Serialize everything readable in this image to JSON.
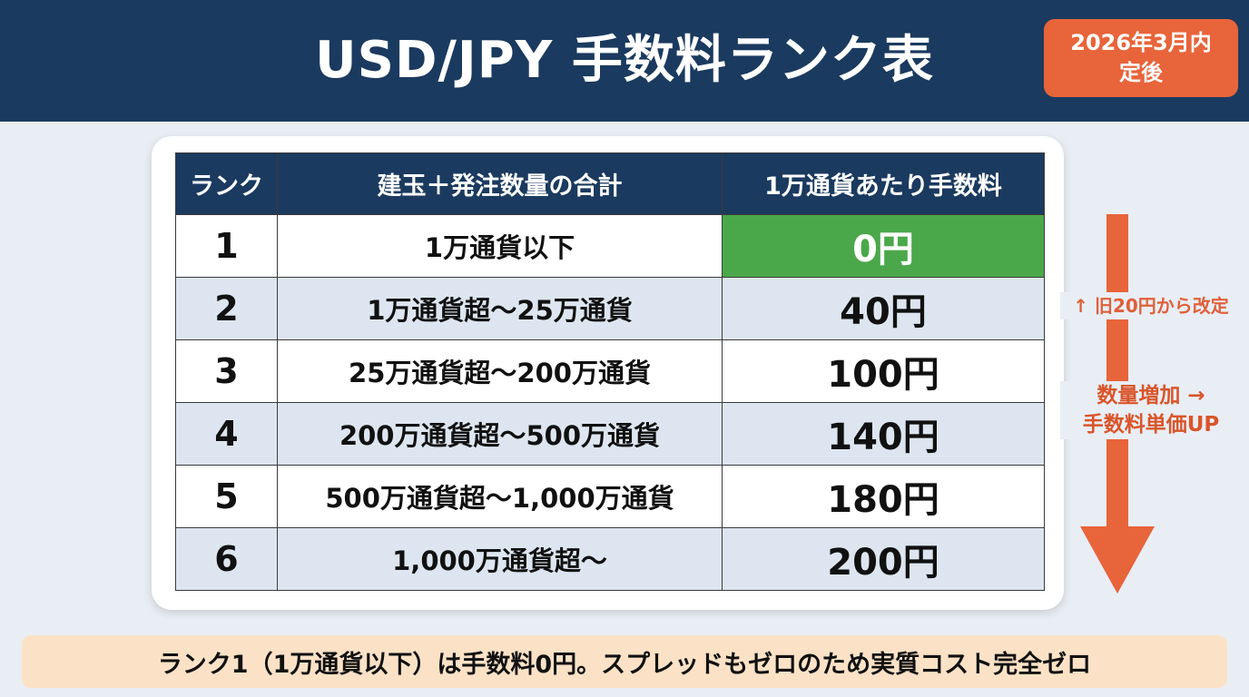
{
  "header": {
    "title": "USD/JPY 手数料ランク表",
    "badge_line1": "2026年3月内",
    "badge_line2": "定後"
  },
  "table": {
    "columns": [
      "ランク",
      "建玉＋発注数量の合計",
      "1万通貨あたり手数料"
    ],
    "rows": [
      {
        "rank": "1",
        "quantity": "1万通貨以下",
        "fee": "0円"
      },
      {
        "rank": "2",
        "quantity": "1万通貨超〜25万通貨",
        "fee": "40円"
      },
      {
        "rank": "3",
        "quantity": "25万通貨超〜200万通貨",
        "fee": "100円"
      },
      {
        "rank": "4",
        "quantity": "200万通貨超〜500万通貨",
        "fee": "140円"
      },
      {
        "rank": "5",
        "quantity": "500万通貨超〜1,000万通貨",
        "fee": "180円"
      },
      {
        "rank": "6",
        "quantity": "1,000万通貨超〜",
        "fee": "200円"
      }
    ]
  },
  "side": {
    "note_revision": "↑ 旧20円から改定",
    "note_trend_line1": "数量増加 →",
    "note_trend_line2": "手数料単価UP",
    "arrow_icon": "down-arrow-icon"
  },
  "footer": {
    "text": "ランク1（1万通貨以下）は手数料0円。スプレッドもゼロのため実質コスト完全ゼロ"
  },
  "colors": {
    "header_bg": "#1b3a5f",
    "badge_bg": "#e8643a",
    "highlight_green": "#4aa84a",
    "accent_orange": "#e8643a",
    "row_alt": "#dde6f0",
    "footer_bg": "#fbe2c6"
  }
}
